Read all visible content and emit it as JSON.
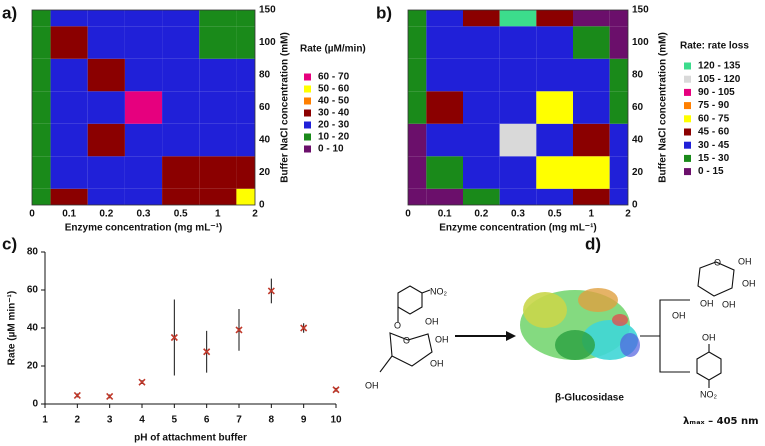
{
  "chart_data": [
    {
      "type": "contour",
      "panel_label": "a)",
      "x_label": "Enzyme concentration (mg mL⁻¹)",
      "y_label": "Buffer NaCl concentration (mM)",
      "categories": [
        0,
        0.1,
        0.2,
        0.3,
        0.5,
        1,
        2
      ],
      "y_categories": [
        0,
        20,
        40,
        60,
        80,
        100,
        150
      ],
      "z": [
        [
          15,
          35,
          25,
          25,
          35,
          35,
          55
        ],
        [
          15,
          25,
          25,
          25,
          35,
          35,
          35
        ],
        [
          15,
          25,
          35,
          25,
          25,
          25,
          25
        ],
        [
          15,
          25,
          25,
          65,
          25,
          25,
          25
        ],
        [
          15,
          25,
          35,
          25,
          25,
          25,
          25
        ],
        [
          15,
          35,
          25,
          25,
          25,
          15,
          15
        ],
        [
          15,
          25,
          25,
          25,
          25,
          15,
          15
        ]
      ],
      "legend_title": "Rate (µM/min)",
      "bins": [
        {
          "label": "60 - 70",
          "min": 60,
          "max": 70,
          "color": "#e6007e"
        },
        {
          "label": "50 - 60",
          "min": 50,
          "max": 60,
          "color": "#ffff00"
        },
        {
          "label": "40 - 50",
          "min": 40,
          "max": 50,
          "color": "#ff7f00"
        },
        {
          "label": "30 - 40",
          "min": 30,
          "max": 40,
          "color": "#8b0000"
        },
        {
          "label": "20 - 30",
          "min": 20,
          "max": 30,
          "color": "#2020d8"
        },
        {
          "label": "10 - 20",
          "min": 10,
          "max": 20,
          "color": "#1a8a1a"
        },
        {
          "label": "0 - 10",
          "min": 0,
          "max": 10,
          "color": "#6b0f6b"
        }
      ]
    },
    {
      "type": "contour",
      "panel_label": "b)",
      "x_label": "Enzyme concentration (mg mL⁻¹)",
      "y_label": "Buffer NaCl concentration (mM)",
      "categories": [
        0,
        0.1,
        0.2,
        0.3,
        0.5,
        1,
        2
      ],
      "y_categories": [
        0,
        20,
        40,
        60,
        80,
        100,
        150
      ],
      "z": [
        [
          10,
          10,
          20,
          35,
          35,
          50,
          35
        ],
        [
          10,
          20,
          40,
          40,
          65,
          65,
          35
        ],
        [
          10,
          40,
          40,
          110,
          35,
          50,
          35
        ],
        [
          20,
          50,
          35,
          35,
          65,
          35,
          20
        ],
        [
          20,
          35,
          35,
          35,
          40,
          35,
          20
        ],
        [
          20,
          35,
          35,
          40,
          35,
          20,
          10
        ],
        [
          20,
          40,
          50,
          125,
          50,
          10,
          10
        ]
      ],
      "legend_title": "Rate: rate loss",
      "bins": [
        {
          "label": "120 - 135",
          "min": 120,
          "max": 135,
          "color": "#3cdc8c"
        },
        {
          "label": "105 - 120",
          "min": 105,
          "max": 120,
          "color": "#d9d9d9"
        },
        {
          "label": "90 - 105",
          "min": 90,
          "max": 105,
          "color": "#e6007e"
        },
        {
          "label": "75 - 90",
          "min": 75,
          "max": 90,
          "color": "#ff7f00"
        },
        {
          "label": "60 - 75",
          "min": 60,
          "max": 75,
          "color": "#ffff00"
        },
        {
          "label": "45 - 60",
          "min": 45,
          "max": 60,
          "color": "#8b0000"
        },
        {
          "label": "30 - 45",
          "min": 30,
          "max": 45,
          "color": "#2020d8"
        },
        {
          "label": "15 - 30",
          "min": 15,
          "max": 30,
          "color": "#1a8a1a"
        },
        {
          "label": "0 - 15",
          "min": 0,
          "max": 15,
          "color": "#6b0f6b"
        }
      ]
    },
    {
      "type": "scatter",
      "panel_label": "c)",
      "x_label": "pH of attachment buffer",
      "y_label": "Rate (µM min⁻¹)",
      "x": [
        2,
        3,
        4,
        5,
        6,
        7,
        8,
        9,
        10
      ],
      "values": [
        4.5,
        4,
        11.5,
        35,
        27.5,
        39,
        59.5,
        40,
        7.5
      ],
      "errors": [
        1,
        1,
        1,
        20,
        11,
        11,
        6.5,
        2.5,
        1
      ],
      "color": "#c0392b",
      "xlim": [
        1,
        10
      ],
      "ylim": [
        0,
        80
      ],
      "xticks": [
        1,
        2,
        3,
        4,
        5,
        6,
        7,
        8,
        9,
        10
      ],
      "yticks": [
        0,
        20,
        40,
        60,
        80
      ]
    }
  ],
  "diagram": {
    "panel_label": "d)",
    "enzyme_label": "β-Glucosidase",
    "detection_label": "λₘₐₓ – 405 nm",
    "substrate_labels": [
      "NO₂",
      "O",
      "O",
      "OH",
      "OH",
      "OH",
      "OH"
    ],
    "glucose_labels": [
      "O",
      "OH",
      "OH",
      "OH",
      "OH",
      "OH"
    ],
    "nitrophenol_labels": [
      "OH",
      "NO₂"
    ]
  }
}
